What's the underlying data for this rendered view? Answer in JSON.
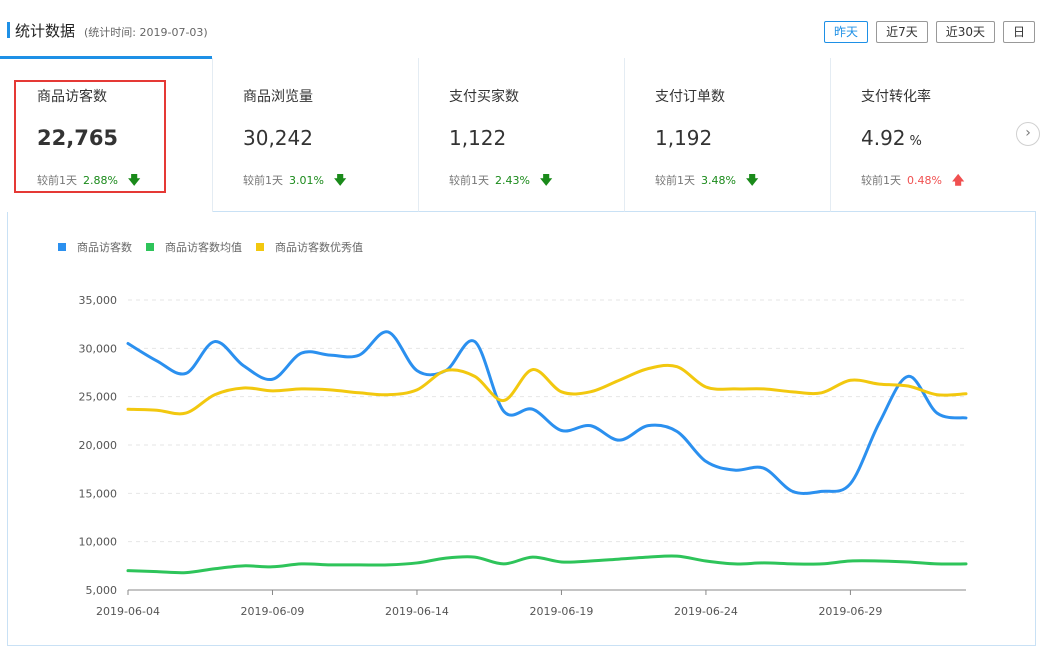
{
  "header": {
    "title": "统计数据",
    "subtitle": "(统计时间: 2019-07-03)",
    "range_buttons": [
      {
        "label": "昨天",
        "active": true
      },
      {
        "label": "近7天",
        "active": false
      },
      {
        "label": "近30天",
        "active": false
      },
      {
        "label": "日",
        "active": false
      }
    ]
  },
  "cards": [
    {
      "label": "商品访客数",
      "value": "22,765",
      "unit": "",
      "compare_label": "较前1天",
      "pct": "2.88%",
      "direction": "down"
    },
    {
      "label": "商品浏览量",
      "value": "30,242",
      "unit": "",
      "compare_label": "较前1天",
      "pct": "3.01%",
      "direction": "down"
    },
    {
      "label": "支付买家数",
      "value": "1,122",
      "unit": "",
      "compare_label": "较前1天",
      "pct": "2.43%",
      "direction": "down"
    },
    {
      "label": "支付订单数",
      "value": "1,192",
      "unit": "",
      "compare_label": "较前1天",
      "pct": "3.48%",
      "direction": "down"
    },
    {
      "label": "支付转化率",
      "value": "4.92",
      "unit": "%",
      "compare_label": "较前1天",
      "pct": "0.48%",
      "direction": "up"
    }
  ],
  "colors": {
    "accent": "#1e90e6",
    "down": "#1a8a1a",
    "up": "#f05050",
    "highlight": "#e53935"
  },
  "chart_data": {
    "type": "line",
    "title": "",
    "xlabel": "",
    "ylabel": "",
    "legend_position": "top-left",
    "grid": true,
    "ylim": [
      5000,
      35000
    ],
    "yticks": [
      "5,000",
      "10,000",
      "15,000",
      "20,000",
      "25,000",
      "30,000",
      "35,000"
    ],
    "xtick_labels": [
      "2019-06-04",
      "2019-06-09",
      "2019-06-14",
      "2019-06-19",
      "2019-06-24",
      "2019-06-29"
    ],
    "x": [
      "2019-06-04",
      "2019-06-05",
      "2019-06-06",
      "2019-06-07",
      "2019-06-08",
      "2019-06-09",
      "2019-06-10",
      "2019-06-11",
      "2019-06-12",
      "2019-06-13",
      "2019-06-14",
      "2019-06-15",
      "2019-06-16",
      "2019-06-17",
      "2019-06-18",
      "2019-06-19",
      "2019-06-20",
      "2019-06-21",
      "2019-06-22",
      "2019-06-23",
      "2019-06-24",
      "2019-06-25",
      "2019-06-26",
      "2019-06-27",
      "2019-06-28",
      "2019-06-29",
      "2019-06-30",
      "2019-07-01",
      "2019-07-02",
      "2019-07-03"
    ],
    "series": [
      {
        "name": "商品访客数",
        "color": "#2b90ef",
        "values": [
          30500,
          28700,
          27400,
          30700,
          28200,
          26800,
          29500,
          29300,
          29300,
          31700,
          27700,
          27700,
          30700,
          23500,
          23700,
          21500,
          22000,
          20500,
          22000,
          21400,
          18300,
          17400,
          17600,
          15200,
          15200,
          16000,
          22300,
          27100,
          23300,
          22800
        ]
      },
      {
        "name": "商品访客数均值",
        "color": "#2ec45a",
        "values": [
          7000,
          6900,
          6800,
          7200,
          7500,
          7400,
          7700,
          7600,
          7600,
          7600,
          7800,
          8300,
          8400,
          7700,
          8400,
          7900,
          8000,
          8200,
          8400,
          8500,
          8000,
          7700,
          7800,
          7700,
          7700,
          8000,
          8000,
          7900,
          7700,
          7700
        ]
      },
      {
        "name": "商品访客数优秀值",
        "color": "#f2c80f",
        "values": [
          23700,
          23600,
          23300,
          25200,
          25900,
          25600,
          25800,
          25700,
          25400,
          25200,
          25700,
          27700,
          27100,
          24600,
          27800,
          25500,
          25500,
          26700,
          27900,
          28100,
          26000,
          25800,
          25800,
          25500,
          25400,
          26700,
          26300,
          26100,
          25200,
          25300
        ]
      }
    ]
  }
}
